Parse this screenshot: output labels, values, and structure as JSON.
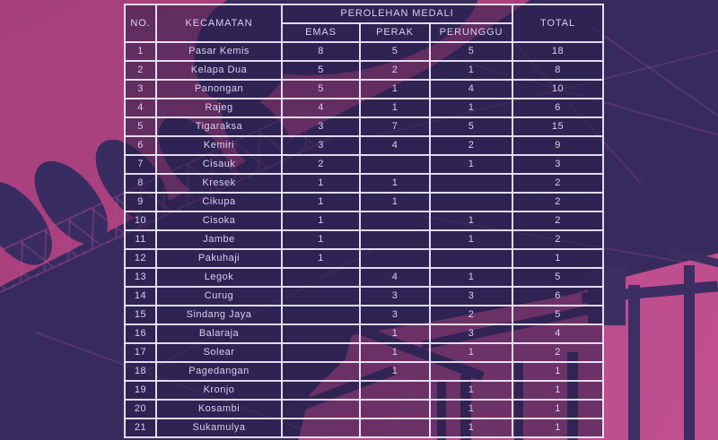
{
  "chart_data": {
    "type": "table",
    "title": "PEROLEHAN MEDALI",
    "columns": [
      "NO.",
      "KECAMATAN",
      "EMAS",
      "PERAK",
      "PERUNGGU",
      "TOTAL"
    ],
    "column_groups": [
      {
        "label": "PEROLEHAN MEDALI",
        "spans": [
          "EMAS",
          "PERAK",
          "PERUNGGU"
        ]
      }
    ],
    "row_keys": [
      "no",
      "kecamatan",
      "emas",
      "perak",
      "perunggu",
      "total"
    ],
    "rows": [
      {
        "no": 1,
        "kecamatan": "Pasar Kemis",
        "emas": 8,
        "perak": 5,
        "perunggu": 5,
        "total": 18
      },
      {
        "no": 2,
        "kecamatan": "Kelapa Dua",
        "emas": 5,
        "perak": 2,
        "perunggu": 1,
        "total": 8
      },
      {
        "no": 3,
        "kecamatan": "Panongan",
        "emas": 5,
        "perak": 1,
        "perunggu": 4,
        "total": 10
      },
      {
        "no": 4,
        "kecamatan": "Rajeg",
        "emas": 4,
        "perak": 1,
        "perunggu": 1,
        "total": 6
      },
      {
        "no": 5,
        "kecamatan": "Tigaraksa",
        "emas": 3,
        "perak": 7,
        "perunggu": 5,
        "total": 15
      },
      {
        "no": 6,
        "kecamatan": "Kemiri",
        "emas": 3,
        "perak": 4,
        "perunggu": 2,
        "total": 9
      },
      {
        "no": 7,
        "kecamatan": "Cisauk",
        "emas": 2,
        "perak": null,
        "perunggu": 1,
        "total": 3
      },
      {
        "no": 8,
        "kecamatan": "Kresek",
        "emas": 1,
        "perak": 1,
        "perunggu": null,
        "total": 2
      },
      {
        "no": 9,
        "kecamatan": "Cikupa",
        "emas": 1,
        "perak": 1,
        "perunggu": null,
        "total": 2
      },
      {
        "no": 10,
        "kecamatan": "Cisoka",
        "emas": 1,
        "perak": null,
        "perunggu": 1,
        "total": 2
      },
      {
        "no": 11,
        "kecamatan": "Jambe",
        "emas": 1,
        "perak": null,
        "perunggu": 1,
        "total": 2
      },
      {
        "no": 12,
        "kecamatan": "Pakuhaji",
        "emas": 1,
        "perak": null,
        "perunggu": null,
        "total": 1
      },
      {
        "no": 13,
        "kecamatan": "Legok",
        "emas": null,
        "perak": 4,
        "perunggu": 1,
        "total": 5
      },
      {
        "no": 14,
        "kecamatan": "Curug",
        "emas": null,
        "perak": 3,
        "perunggu": 3,
        "total": 6
      },
      {
        "no": 15,
        "kecamatan": "Sindang Jaya",
        "emas": null,
        "perak": 3,
        "perunggu": 2,
        "total": 5
      },
      {
        "no": 16,
        "kecamatan": "Balaraja",
        "emas": null,
        "perak": 1,
        "perunggu": 3,
        "total": 4
      },
      {
        "no": 17,
        "kecamatan": "Solear",
        "emas": null,
        "perak": 1,
        "perunggu": 1,
        "total": 2
      },
      {
        "no": 18,
        "kecamatan": "Pagedangan",
        "emas": null,
        "perak": 1,
        "perunggu": null,
        "total": 1
      },
      {
        "no": 19,
        "kecamatan": "Kronjo",
        "emas": null,
        "perak": null,
        "perunggu": 1,
        "total": 1
      },
      {
        "no": 20,
        "kecamatan": "Kosambi",
        "emas": null,
        "perak": null,
        "perunggu": 1,
        "total": 1
      },
      {
        "no": 21,
        "kecamatan": "Sukamulya",
        "emas": null,
        "perak": null,
        "perunggu": 1,
        "total": 1
      }
    ]
  },
  "table": {
    "headers": {
      "no": "NO.",
      "kecamatan": "KECAMATAN",
      "medal_group": "PEROLEHAN MEDALI",
      "emas": "EMAS",
      "perak": "PERAK",
      "perunggu": "PERUNGGU",
      "total": "TOTAL"
    }
  },
  "colors": {
    "pink_base": "#a6407c",
    "pink_bright": "#bc4b8d",
    "dark_navy": "#372b5e",
    "table_cell_fill": "rgba(40,30,73,0.55)",
    "table_border": "#e8e5f6",
    "table_text": "#d6d1ef"
  }
}
